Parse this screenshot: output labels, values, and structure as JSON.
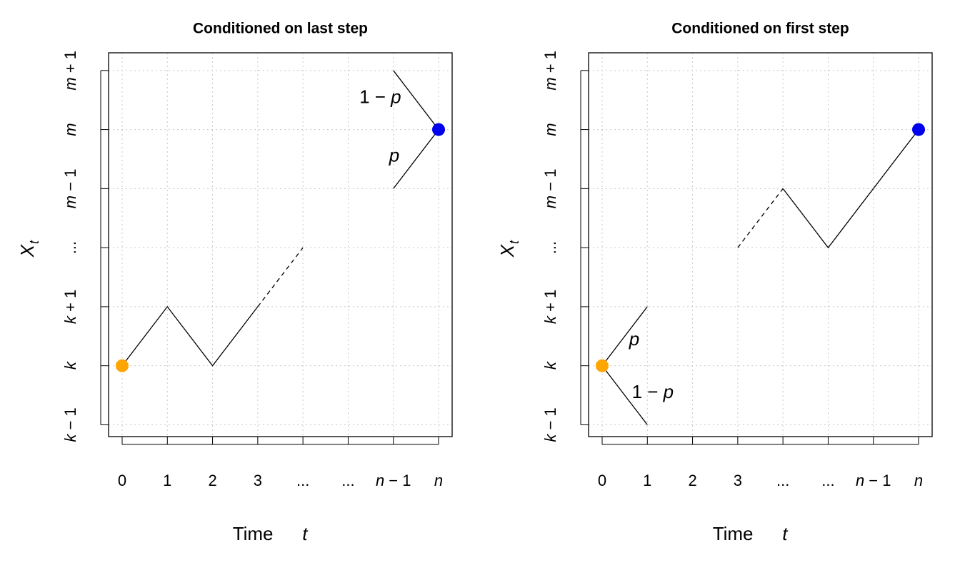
{
  "chart_data": [
    {
      "type": "line",
      "title": "Conditioned on last step",
      "xlabel": {
        "text": "Time",
        "variable": "t"
      },
      "ylabel": {
        "symbol": "X",
        "subscript": "t"
      },
      "xlim": [
        -0.3,
        7.3
      ],
      "ylim": [
        -0.2,
        6.3
      ],
      "xticks": [
        0,
        1,
        2,
        3,
        {
          "value": 4,
          "label": "..."
        },
        {
          "value": 5,
          "label": "..."
        },
        {
          "value": 6,
          "label": "n − 1"
        },
        {
          "value": 7,
          "label": "n"
        }
      ],
      "yticks": [
        {
          "value": 0,
          "label": "k − 1"
        },
        {
          "value": 1,
          "label": "k"
        },
        {
          "value": 2,
          "label": "k + 1"
        },
        {
          "value": 3,
          "label": "..."
        },
        {
          "value": 4,
          "label": "m − 1"
        },
        {
          "value": 5,
          "label": "m"
        },
        {
          "value": 6,
          "label": "m + 1"
        }
      ],
      "grid": true,
      "series": [
        {
          "style": "solid",
          "color": "#000000",
          "x": [
            0,
            1,
            2,
            3
          ],
          "y": [
            1,
            2,
            1,
            2
          ]
        },
        {
          "style": "dashed",
          "color": "#000000",
          "x": [
            3,
            4
          ],
          "y": [
            2,
            3
          ]
        },
        {
          "style": "solid",
          "color": "#000000",
          "x": [
            6,
            7,
            6
          ],
          "y": [
            6,
            5,
            4
          ]
        }
      ],
      "points": [
        {
          "x": 0,
          "y": 1,
          "color": "#ffa500"
        },
        {
          "x": 7,
          "y": 5,
          "color": "#0000ee"
        }
      ],
      "annotations": [
        {
          "text": "1 − p",
          "x": 5.71,
          "y": 5.53
        },
        {
          "text": "p",
          "x": 6.02,
          "y": 4.54
        }
      ]
    },
    {
      "type": "line",
      "title": "Conditioned on first step",
      "xlabel": {
        "text": "Time",
        "variable": "t"
      },
      "ylabel": {
        "symbol": "X",
        "subscript": "t"
      },
      "xlim": [
        -0.3,
        7.3
      ],
      "ylim": [
        -0.2,
        6.3
      ],
      "xticks": [
        0,
        1,
        2,
        3,
        {
          "value": 4,
          "label": "..."
        },
        {
          "value": 5,
          "label": "..."
        },
        {
          "value": 6,
          "label": "n − 1"
        },
        {
          "value": 7,
          "label": "n"
        }
      ],
      "yticks": [
        {
          "value": 0,
          "label": "k − 1"
        },
        {
          "value": 1,
          "label": "k"
        },
        {
          "value": 2,
          "label": "k + 1"
        },
        {
          "value": 3,
          "label": "..."
        },
        {
          "value": 4,
          "label": "m − 1"
        },
        {
          "value": 5,
          "label": "m"
        },
        {
          "value": 6,
          "label": "m + 1"
        }
      ],
      "grid": true,
      "series": [
        {
          "style": "solid",
          "color": "#000000",
          "x": [
            1,
            0,
            1
          ],
          "y": [
            2,
            1,
            0
          ]
        },
        {
          "style": "dashed",
          "color": "#000000",
          "x": [
            3,
            4
          ],
          "y": [
            3,
            4
          ]
        },
        {
          "style": "solid",
          "color": "#000000",
          "x": [
            4,
            5,
            7
          ],
          "y": [
            4,
            3,
            5
          ]
        }
      ],
      "points": [
        {
          "x": 0,
          "y": 1,
          "color": "#ffa500"
        },
        {
          "x": 7,
          "y": 5,
          "color": "#0000ee"
        }
      ],
      "annotations": [
        {
          "text": "p",
          "x": 0.71,
          "y": 1.43
        },
        {
          "text": "1 − p",
          "x": 1.12,
          "y": 0.54
        }
      ]
    }
  ]
}
